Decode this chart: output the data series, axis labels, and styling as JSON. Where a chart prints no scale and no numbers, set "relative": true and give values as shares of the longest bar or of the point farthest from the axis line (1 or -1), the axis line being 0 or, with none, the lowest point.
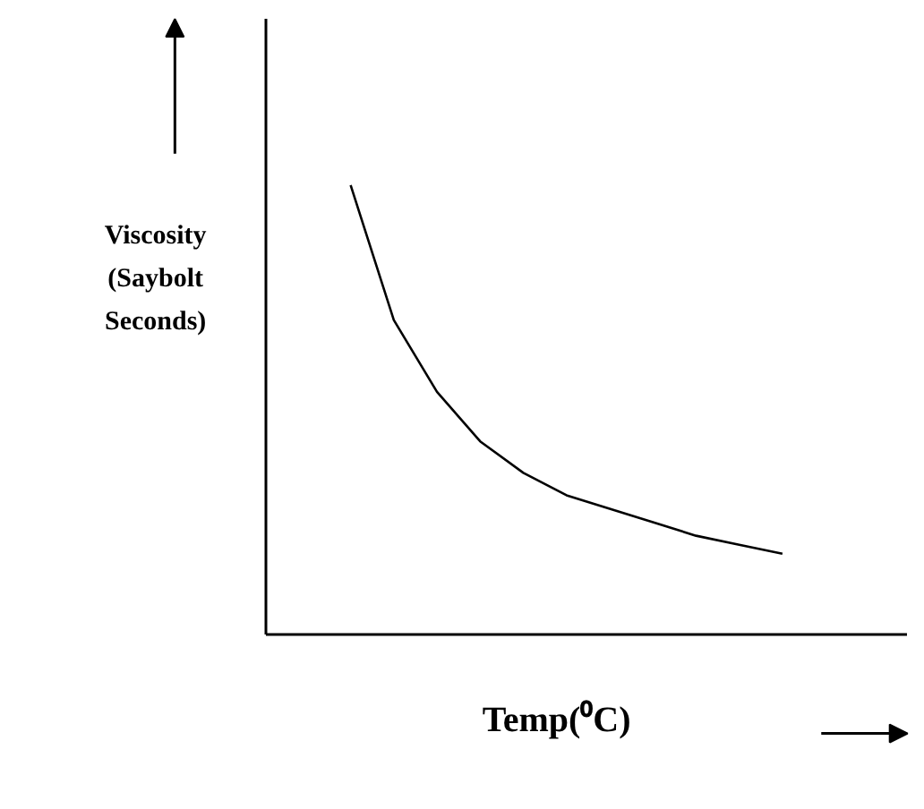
{
  "chart_data": {
    "type": "line",
    "relative": true,
    "xlabel": "Temp(⁰C)",
    "ylabel": "Viscosity\n(Saybolt\nSeconds)",
    "color": "#000000",
    "categories": [
      null,
      null,
      null,
      null,
      null,
      null,
      null,
      null,
      null,
      null,
      null
    ],
    "values": [
      1,
      0.7,
      0.54,
      0.43,
      0.36,
      0.31,
      0.28,
      0.25,
      0.22,
      0.2,
      0.18
    ]
  }
}
